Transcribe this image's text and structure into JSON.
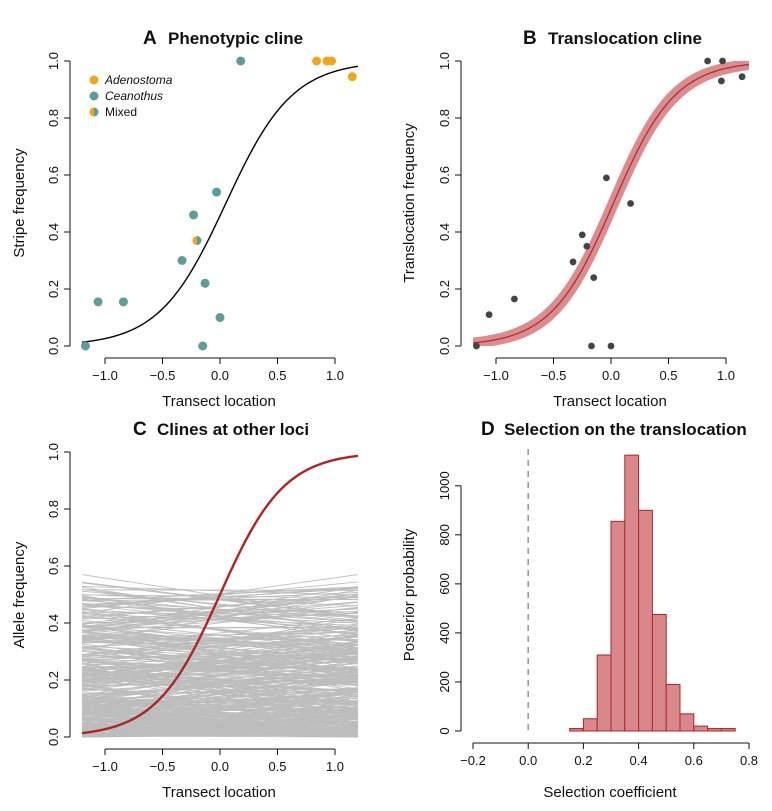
{
  "chart_data": [
    {
      "panel": "A",
      "type": "scatter",
      "title": "Phenotypic cline",
      "xlabel": "Transect location",
      "ylabel": "Stripe frequency",
      "xlim": [
        -1.2,
        1.2
      ],
      "ylim": [
        0,
        1
      ],
      "xticks": [
        "-1.0",
        "-0.5",
        "0.0",
        "0.5",
        "1.0"
      ],
      "yticks": [
        "0.0",
        "0.2",
        "0.4",
        "0.6",
        "0.8",
        "1.0"
      ],
      "legend": {
        "placement": "top-left",
        "entries": [
          "Adenostoma",
          "Ceanothus",
          "Mixed"
        ],
        "italic": [
          true,
          true,
          false
        ]
      },
      "colors": {
        "Adenostoma": "#f0a51e",
        "Ceanothus": "#5f9c9c",
        "curve": "#000000"
      },
      "curve": {
        "shape": "logistic",
        "center": 0.05,
        "width": 0.29
      },
      "series": [
        {
          "name": "Adenostoma",
          "x": [
            0.84,
            0.93,
            0.97,
            1.15
          ],
          "y": [
            1.0,
            1.0,
            1.0,
            0.945
          ]
        },
        {
          "name": "Ceanothus",
          "x": [
            -1.17,
            -1.06,
            -0.84,
            -0.33,
            -0.23,
            -0.15,
            -0.13,
            -0.03,
            0.0,
            0.18
          ],
          "y": [
            0.0,
            0.155,
            0.155,
            0.3,
            0.46,
            0.0,
            0.22,
            0.54,
            0.1,
            1.0
          ]
        },
        {
          "name": "Mixed",
          "x": [
            -0.2
          ],
          "y": [
            0.37
          ]
        }
      ]
    },
    {
      "panel": "B",
      "type": "scatter",
      "title": "Translocation cline",
      "xlabel": "Transect location",
      "ylabel": "Translocation frequency",
      "xlim": [
        -1.2,
        1.2
      ],
      "ylim": [
        0,
        1
      ],
      "xticks": [
        "-1.0",
        "-0.5",
        "0.0",
        "0.5",
        "1.0"
      ],
      "yticks": [
        "0.0",
        "0.2",
        "0.4",
        "0.6",
        "0.8",
        "1.0"
      ],
      "colors": {
        "points": "#444444",
        "curve": "#a83232",
        "band": "#d4787a"
      },
      "curve": {
        "shape": "logistic",
        "center": 0.02,
        "width": 0.27,
        "band_width": 0.05
      },
      "points": {
        "x": [
          -1.17,
          -1.06,
          -0.84,
          -0.33,
          -0.25,
          -0.21,
          -0.17,
          -0.15,
          -0.04,
          0.0,
          0.17,
          0.84,
          0.97,
          0.96,
          1.14
        ],
        "y": [
          0.0,
          0.11,
          0.165,
          0.295,
          0.39,
          0.35,
          0.0,
          0.24,
          0.59,
          0.0,
          0.5,
          1.0,
          1.0,
          0.93,
          0.945
        ]
      }
    },
    {
      "panel": "C",
      "type": "line",
      "title": "Clines at other loci",
      "xlabel": "Transect location",
      "ylabel": "Allele frequency",
      "xlim": [
        -1.2,
        1.2
      ],
      "ylim": [
        0,
        1
      ],
      "xticks": [
        "-1.0",
        "-0.5",
        "0.0",
        "0.5",
        "1.0"
      ],
      "yticks": [
        "0.0",
        "0.2",
        "0.4",
        "0.6",
        "0.8",
        "1.0"
      ],
      "colors": {
        "background_loci": "#bdbdbd",
        "translocation": "#a82828"
      },
      "highlight_curve": {
        "shape": "logistic",
        "center": 0.0,
        "width": 0.28
      },
      "background_loci": {
        "count": 400,
        "frequency_range": [
          0.0,
          0.57
        ],
        "note": "near-flat lines"
      }
    },
    {
      "panel": "D",
      "type": "bar",
      "title": "Selection on the translocation",
      "xlabel": "Selection coefficient",
      "ylabel": "Posterior probability",
      "xlim": [
        -0.2,
        0.8
      ],
      "ylim": [
        0,
        1150
      ],
      "xticks": [
        "-0.2",
        "0.0",
        "0.2",
        "0.4",
        "0.6",
        "0.8"
      ],
      "yticks": [
        "0",
        "200",
        "400",
        "600",
        "800",
        "1000"
      ],
      "colors": {
        "fill": "#d9878a",
        "edge": "#a82828",
        "ref_line": "#999999"
      },
      "reference_line_x": 0.0,
      "bin_edges": [
        0.15,
        0.2,
        0.25,
        0.3,
        0.35,
        0.4,
        0.45,
        0.5,
        0.55,
        0.6,
        0.65,
        0.7,
        0.75
      ],
      "values": [
        10,
        50,
        310,
        855,
        1125,
        900,
        475,
        190,
        70,
        20,
        10,
        10
      ]
    }
  ]
}
